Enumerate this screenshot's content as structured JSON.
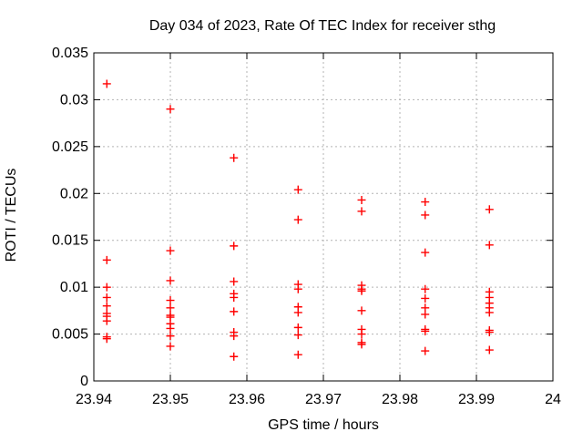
{
  "chart_data": {
    "type": "scatter",
    "title": "Day 034 of 2023, Rate Of TEC Index for receiver sthg",
    "xlabel": "GPS time / hours",
    "ylabel": "ROTI / TECUs",
    "xlim": [
      23.94,
      24
    ],
    "ylim": [
      0,
      0.035
    ],
    "xtick_values": [
      23.94,
      23.95,
      23.96,
      23.97,
      23.98,
      23.99,
      24
    ],
    "xtick_labels": [
      "23.94",
      "23.95",
      "23.96",
      "23.97",
      "23.98",
      "23.99",
      "24"
    ],
    "ytick_values": [
      0,
      0.005,
      0.01,
      0.015,
      0.02,
      0.025,
      0.03,
      0.035
    ],
    "ytick_labels": [
      "0",
      "0.005",
      "0.01",
      "0.015",
      "0.02",
      "0.025",
      "0.03",
      "0.035"
    ],
    "grid": true,
    "grid_style": "dashed",
    "grid_color": "#b3b3b3",
    "legend": "none",
    "background_color": "#ffffff",
    "border_color": "#000000",
    "marker": {
      "shape": "plus",
      "color": "#ff0000"
    },
    "series": [
      {
        "name": "ROTI",
        "groups": [
          {
            "x": 23.9417,
            "y": [
              0.0317,
              0.0129,
              0.01,
              0.0089,
              0.008,
              0.0072,
              0.0069,
              0.0064,
              0.0047,
              0.0045
            ]
          },
          {
            "x": 23.95,
            "y": [
              0.029,
              0.0139,
              0.0107,
              0.0086,
              0.0078,
              0.007,
              0.0068,
              0.0061,
              0.0056,
              0.0048,
              0.0037
            ]
          },
          {
            "x": 23.9583,
            "y": [
              0.0238,
              0.0144,
              0.0106,
              0.0093,
              0.0089,
              0.0074,
              0.0052,
              0.0048,
              0.0026
            ]
          },
          {
            "x": 23.9667,
            "y": [
              0.0204,
              0.0172,
              0.0103,
              0.0098,
              0.0079,
              0.0073,
              0.0057,
              0.0049,
              0.0028
            ]
          },
          {
            "x": 23.975,
            "y": [
              0.0193,
              0.0181,
              0.0102,
              0.0098,
              0.0096,
              0.0075,
              0.0055,
              0.005,
              0.0041,
              0.0039
            ]
          },
          {
            "x": 23.9833,
            "y": [
              0.0191,
              0.0177,
              0.0137,
              0.0098,
              0.0088,
              0.0078,
              0.0071,
              0.0055,
              0.0053,
              0.0032
            ]
          },
          {
            "x": 23.9917,
            "y": [
              0.0183,
              0.0145,
              0.0095,
              0.0089,
              0.0083,
              0.0078,
              0.0073,
              0.0054,
              0.0052,
              0.0033
            ]
          }
        ]
      }
    ]
  }
}
